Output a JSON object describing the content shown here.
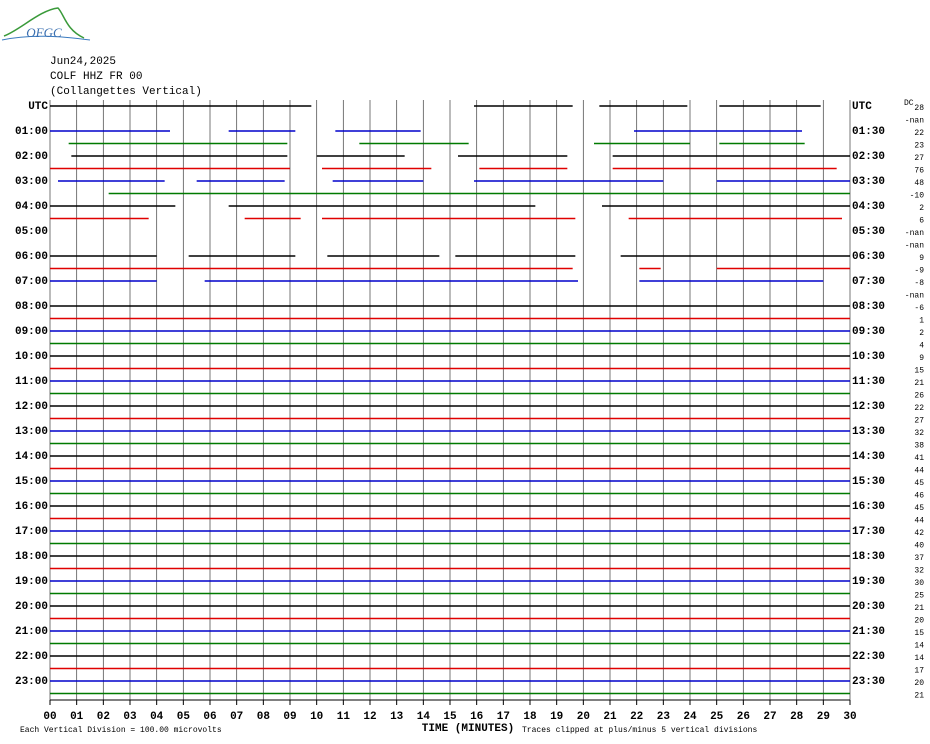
{
  "chart_data": {
    "type": "helicorder",
    "logo": "OFGC",
    "date": "Jun24,2025",
    "station": "COLF HHZ FR 00",
    "location": "(Collangettes Vertical)",
    "xlabel": "TIME (MINUTES)",
    "scale_note": "Each Vertical Division =  100.00 microvolts",
    "clip_note": "Traces clipped at plus/minus 5 vertical divisions",
    "dc_header": "DC",
    "xlim": [
      0,
      30
    ],
    "xticks": [
      {
        "value": 0,
        "label": "00"
      },
      {
        "value": 1,
        "label": "01"
      },
      {
        "value": 2,
        "label": "02"
      },
      {
        "value": 3,
        "label": "03"
      },
      {
        "value": 4,
        "label": "04"
      },
      {
        "value": 5,
        "label": "05"
      },
      {
        "value": 6,
        "label": "06"
      },
      {
        "value": 7,
        "label": "07"
      },
      {
        "value": 8,
        "label": "08"
      },
      {
        "value": 9,
        "label": "09"
      },
      10,
      11,
      12,
      13,
      14,
      15,
      16,
      17,
      18,
      19,
      20,
      21,
      22,
      23,
      24,
      25,
      26,
      27,
      28,
      29,
      30
    ],
    "grid": true,
    "trace_colors": [
      "#000000",
      "#e00000",
      "#0000cc",
      "#007a00"
    ],
    "left_labels": [
      "UTC",
      "01:00",
      "02:00",
      "03:00",
      "04:00",
      "05:00",
      "06:00",
      "07:00",
      "08:00",
      "09:00",
      "10:00",
      "11:00",
      "12:00",
      "13:00",
      "14:00",
      "15:00",
      "16:00",
      "17:00",
      "18:00",
      "19:00",
      "20:00",
      "21:00",
      "22:00",
      "23:00"
    ],
    "right_labels": [
      "UTC",
      "01:30",
      "02:30",
      "03:30",
      "04:30",
      "05:30",
      "06:30",
      "07:30",
      "08:30",
      "09:30",
      "10:30",
      "11:30",
      "12:30",
      "13:30",
      "14:30",
      "15:30",
      "16:30",
      "17:30",
      "18:30",
      "19:30",
      "20:30",
      "21:30",
      "22:30",
      "23:30"
    ],
    "dc_offsets": [
      28,
      "-nan",
      22,
      23,
      27,
      76,
      48,
      -10,
      2,
      6,
      "-nan",
      "-nan",
      9,
      -9,
      -8,
      "-nan",
      -6,
      1,
      2,
      4,
      9,
      15,
      21,
      26,
      22,
      27,
      32,
      38,
      41,
      44,
      45,
      46,
      45,
      44,
      42,
      40,
      37,
      32,
      30,
      25,
      21,
      20,
      15,
      14,
      14,
      17,
      20,
      21
    ],
    "traces": [
      {
        "segments": [
          [
            0,
            9.8
          ],
          [
            15.9,
            19.6
          ],
          [
            20.6,
            23.9
          ],
          [
            25.1,
            28.9
          ]
        ]
      },
      {
        "segments": []
      },
      {
        "segments": [
          [
            0,
            4.5
          ],
          [
            6.7,
            9.2
          ],
          [
            10.7,
            13.9
          ],
          [
            21.9,
            28.2
          ]
        ]
      },
      {
        "segments": [
          [
            0.7,
            8.9
          ],
          [
            11.6,
            15.7
          ],
          [
            20.4,
            24
          ],
          [
            25.1,
            28.3
          ]
        ]
      },
      {
        "segments": [
          [
            0.8,
            8.9
          ],
          [
            10,
            13.3
          ],
          [
            15.3,
            19.4
          ],
          [
            21.1,
            30
          ]
        ]
      },
      {
        "segments": [
          [
            0,
            9
          ],
          [
            10.2,
            14.3
          ],
          [
            16.1,
            19.4
          ],
          [
            21.1,
            29.5
          ]
        ]
      },
      {
        "segments": [
          [
            0.3,
            4.3
          ],
          [
            5.5,
            8.8
          ],
          [
            10.6,
            14
          ],
          [
            15.9,
            23
          ],
          [
            25,
            30
          ]
        ]
      },
      {
        "segments": [
          [
            2.2,
            30
          ]
        ]
      },
      {
        "segments": [
          [
            0,
            4.7
          ],
          [
            6.7,
            18.2
          ],
          [
            20.7,
            30
          ]
        ]
      },
      {
        "segments": [
          [
            0,
            3.7
          ],
          [
            7.3,
            9.4
          ],
          [
            10.2,
            19.7
          ],
          [
            21.7,
            29.7
          ]
        ]
      },
      {
        "segments": []
      },
      {
        "segments": []
      },
      {
        "segments": [
          [
            0,
            4
          ],
          [
            5.2,
            9.2
          ],
          [
            10.4,
            14.6
          ],
          [
            15.2,
            19.7
          ],
          [
            21.4,
            30
          ]
        ]
      },
      {
        "segments": [
          [
            0,
            19.6
          ],
          [
            22.1,
            22.9
          ],
          [
            25,
            30
          ]
        ]
      },
      {
        "segments": [
          [
            0,
            4
          ],
          [
            5.8,
            19.8
          ],
          [
            22.1,
            29
          ]
        ]
      },
      {
        "segments": []
      },
      {
        "segments": [
          [
            0,
            30
          ]
        ]
      },
      {
        "segments": [
          [
            0,
            30
          ]
        ]
      },
      {
        "segments": [
          [
            0,
            30
          ]
        ]
      },
      {
        "segments": [
          [
            0,
            30
          ]
        ]
      },
      {
        "segments": [
          [
            0,
            30
          ]
        ]
      },
      {
        "segments": [
          [
            0,
            30
          ]
        ]
      },
      {
        "segments": [
          [
            0,
            30
          ]
        ]
      },
      {
        "segments": [
          [
            0,
            30
          ]
        ]
      },
      {
        "segments": [
          [
            0,
            30
          ]
        ]
      },
      {
        "segments": [
          [
            0,
            30
          ]
        ]
      },
      {
        "segments": [
          [
            0,
            30
          ]
        ]
      },
      {
        "segments": [
          [
            0,
            30
          ]
        ]
      },
      {
        "segments": [
          [
            0,
            30
          ]
        ]
      },
      {
        "segments": [
          [
            0,
            30
          ]
        ]
      },
      {
        "segments": [
          [
            0,
            30
          ]
        ]
      },
      {
        "segments": [
          [
            0,
            30
          ]
        ]
      },
      {
        "segments": [
          [
            0,
            30
          ]
        ]
      },
      {
        "segments": [
          [
            0,
            30
          ]
        ]
      },
      {
        "segments": [
          [
            0,
            30
          ]
        ]
      },
      {
        "segments": [
          [
            0,
            30
          ]
        ]
      },
      {
        "segments": [
          [
            0,
            30
          ]
        ]
      },
      {
        "segments": [
          [
            0,
            30
          ]
        ]
      },
      {
        "segments": [
          [
            0,
            30
          ]
        ]
      },
      {
        "segments": [
          [
            0,
            30
          ]
        ]
      },
      {
        "segments": [
          [
            0,
            30
          ]
        ]
      },
      {
        "segments": [
          [
            0,
            30
          ]
        ]
      },
      {
        "segments": [
          [
            0,
            30
          ]
        ]
      },
      {
        "segments": [
          [
            0,
            30
          ]
        ]
      },
      {
        "segments": [
          [
            0,
            30
          ]
        ]
      },
      {
        "segments": [
          [
            0,
            30
          ]
        ]
      },
      {
        "segments": [
          [
            0,
            30
          ]
        ]
      },
      {
        "segments": [
          [
            0,
            30
          ]
        ]
      }
    ]
  }
}
